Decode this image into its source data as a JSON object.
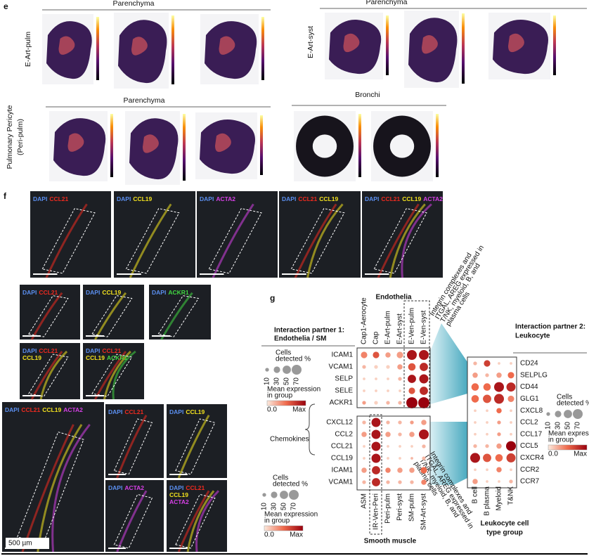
{
  "panel_labels": [
    "e",
    "f",
    "g"
  ],
  "e": {
    "groups": [
      {
        "header": "Parenchyma",
        "label": [
          "E-Art-pulm"
        ]
      },
      {
        "header": "Parenchyma",
        "label": [
          "E-Art-syst"
        ]
      },
      {
        "header": "Parenchyma",
        "label": [
          "Pulmonary Pericyte",
          "(Peri-pulm)"
        ]
      },
      {
        "header": "Bronchi",
        "label": []
      }
    ]
  },
  "f": {
    "images": [
      {
        "lines": [
          [
            {
              "text": "DAPI",
              "color": "#5b8ff0"
            },
            {
              "text": "CCL21",
              "color": "#ee2a1f"
            }
          ]
        ]
      },
      {
        "lines": [
          [
            {
              "text": "DAPI",
              "color": "#5b8ff0"
            },
            {
              "text": "CCL19",
              "color": "#f4e31e"
            }
          ]
        ]
      },
      {
        "lines": [
          [
            {
              "text": "DAPI",
              "color": "#5b8ff0"
            },
            {
              "text": "ACTA2",
              "color": "#d640e6"
            }
          ]
        ]
      },
      {
        "lines": [
          [
            {
              "text": "DAPI",
              "color": "#5b8ff0"
            },
            {
              "text": "CCL21",
              "color": "#ee2a1f"
            },
            {
              "text": "CCL19",
              "color": "#f4e31e"
            }
          ]
        ]
      },
      {
        "lines": [
          [
            {
              "text": "DAPI",
              "color": "#5b8ff0"
            },
            {
              "text": "CCL21",
              "color": "#ee2a1f"
            },
            {
              "text": "CCL19",
              "color": "#f4e31e"
            },
            {
              "text": "ACTA2",
              "color": "#d640e6"
            }
          ]
        ]
      },
      {
        "lines": [
          [
            {
              "text": "DAPI",
              "color": "#5b8ff0"
            },
            {
              "text": "CCL21",
              "color": "#ee2a1f"
            }
          ]
        ]
      },
      {
        "lines": [
          [
            {
              "text": "DAPI",
              "color": "#5b8ff0"
            },
            {
              "text": "CCL19",
              "color": "#f4e31e"
            }
          ]
        ]
      },
      {
        "lines": [
          [
            {
              "text": "DAPI",
              "color": "#5b8ff0"
            },
            {
              "text": "ACKR1",
              "color": "#42d642"
            }
          ]
        ]
      },
      {
        "lines": [
          [
            {
              "text": "DAPI",
              "color": "#5b8ff0"
            },
            {
              "text": "CCL21",
              "color": "#ee2a1f"
            }
          ],
          [
            {
              "text": "CCL19",
              "color": "#f4e31e"
            }
          ]
        ]
      },
      {
        "lines": [
          [
            {
              "text": "DAPI",
              "color": "#5b8ff0"
            },
            {
              "text": "CCL21",
              "color": "#ee2a1f"
            }
          ],
          [
            {
              "text": "CCL19",
              "color": "#f4e31e"
            },
            {
              "text": "ACKR1",
              "color": "#42d642"
            }
          ]
        ]
      },
      {
        "lines": [
          [
            {
              "text": "DAPI",
              "color": "#5b8ff0"
            },
            {
              "text": "CCL21",
              "color": "#ee2a1f"
            },
            {
              "text": "CCL19",
              "color": "#f4e31e"
            },
            {
              "text": "ACTA2",
              "color": "#d640e6"
            }
          ]
        ]
      },
      {
        "lines": [
          [
            {
              "text": "DAPI",
              "color": "#5b8ff0"
            },
            {
              "text": "CCL21",
              "color": "#ee2a1f"
            }
          ]
        ]
      },
      {
        "lines": [
          [
            {
              "text": "DAPI",
              "color": "#5b8ff0"
            },
            {
              "text": "CCL19",
              "color": "#f4e31e"
            }
          ]
        ]
      },
      {
        "lines": [
          [
            {
              "text": "DAPI",
              "color": "#5b8ff0"
            },
            {
              "text": "ACTA2",
              "color": "#d640e6"
            }
          ]
        ]
      },
      {
        "lines": [
          [
            {
              "text": "DAPI",
              "color": "#5b8ff0"
            },
            {
              "text": "CCL21",
              "color": "#ee2a1f"
            }
          ],
          [
            {
              "text": "CCL19",
              "color": "#f4e31e"
            }
          ],
          [
            {
              "text": "ACTA2",
              "color": "#d640e6"
            }
          ]
        ]
      }
    ],
    "scale_bar": "500 µm"
  },
  "g": {
    "top_title": "Endothelia",
    "bottom_title": "Smooth muscle",
    "partner1": [
      "Interaction partner 1:",
      "Endothelia / SM"
    ],
    "partner2": [
      "Interaction partner 2:",
      "Leukocyte"
    ],
    "chemokines": "Chemokines",
    "leuko_title": [
      "Leukocyte cell",
      "type group"
    ],
    "arrows": [
      [
        "Integrin complexes and",
        "ITGAL, AREG expressed in",
        "T/NK, myeloid, B, and",
        "plasma cells"
      ],
      [
        "Integrin complexes and",
        "ITGAL, AREG expressed in",
        "T/NK, myeloid, B, and",
        "plasma cells"
      ]
    ],
    "top": {
      "cols": [
        "Cap1-Aerocyte",
        "Cap",
        "E-Art-pulm",
        "E-Art-syst",
        "E-Ven-pulm",
        "E-Ven-syst"
      ],
      "rows": [
        "ICAM1",
        "VCAM1",
        "SELP",
        "SELE",
        "ACKR1"
      ],
      "size": [
        [
          30,
          30,
          20,
          30,
          70,
          70
        ],
        [
          10,
          10,
          10,
          20,
          40,
          50
        ],
        [
          5,
          5,
          5,
          10,
          50,
          60
        ],
        [
          5,
          5,
          5,
          5,
          30,
          50
        ],
        [
          10,
          10,
          10,
          10,
          90,
          90
        ]
      ],
      "expr": [
        [
          0.4,
          0.6,
          0.3,
          0.3,
          0.9,
          0.9
        ],
        [
          0.2,
          0.1,
          0.1,
          0.3,
          0.6,
          0.8
        ],
        [
          0.1,
          0.1,
          0.1,
          0.2,
          0.9,
          0.9
        ],
        [
          0.1,
          0.1,
          0.1,
          0.1,
          0.6,
          0.8
        ],
        [
          0.3,
          0.1,
          0.2,
          0.2,
          1,
          1
        ]
      ]
    },
    "bottom": {
      "cols": [
        "ASM",
        "IR-Ven-Peri",
        "Peri-pulm",
        "Peri-syst",
        "SM-pulm",
        "SM-Art-syst"
      ],
      "rows": [
        "CXCL12",
        "CCL2",
        "CCL21",
        "CCL19",
        "ICAM1",
        "VCAM1"
      ],
      "size": [
        [
          10,
          60,
          10,
          10,
          10,
          20
        ],
        [
          20,
          60,
          20,
          10,
          20,
          70
        ],
        [
          5,
          60,
          5,
          5,
          5,
          10
        ],
        [
          5,
          60,
          5,
          5,
          5,
          10
        ],
        [
          20,
          50,
          20,
          20,
          20,
          30
        ],
        [
          10,
          50,
          10,
          10,
          10,
          20
        ]
      ],
      "expr": [
        [
          0.2,
          0.9,
          0.2,
          0.2,
          0.3,
          0.3
        ],
        [
          0.3,
          0.9,
          0.3,
          0.2,
          0.3,
          0.9
        ],
        [
          0.1,
          0.9,
          0.1,
          0.1,
          0.1,
          0.2
        ],
        [
          0.1,
          0.9,
          0.1,
          0.1,
          0.2,
          0.2
        ],
        [
          0.3,
          0.8,
          0.4,
          0.3,
          0.3,
          0.5
        ],
        [
          0.2,
          0.8,
          0.2,
          0.2,
          0.2,
          0.4
        ]
      ]
    },
    "right": {
      "cols": [
        "B cell",
        "B plasma",
        "Myeloid",
        "T&NK"
      ],
      "rows": [
        "CD24",
        "SELPLG",
        "CD44",
        "GLG1",
        "CXCL8",
        "CCL2",
        "CCL17",
        "CCL5",
        "CXCR4",
        "CCR2",
        "CCR7"
      ],
      "size": [
        [
          10,
          30,
          5,
          5
        ],
        [
          20,
          10,
          20,
          30
        ],
        [
          40,
          40,
          70,
          60
        ],
        [
          40,
          50,
          70,
          30
        ],
        [
          5,
          5,
          20,
          5
        ],
        [
          5,
          5,
          10,
          5
        ],
        [
          5,
          5,
          10,
          5
        ],
        [
          10,
          10,
          20,
          70
        ],
        [
          70,
          50,
          40,
          60
        ],
        [
          5,
          5,
          20,
          5
        ],
        [
          20,
          5,
          5,
          10
        ]
      ],
      "expr": [
        [
          0.2,
          0.7,
          0.1,
          0.1
        ],
        [
          0.3,
          0.2,
          0.3,
          0.5
        ],
        [
          0.5,
          0.5,
          0.9,
          0.8
        ],
        [
          0.5,
          0.6,
          0.8,
          0.4
        ],
        [
          0.1,
          0.1,
          0.5,
          0.1
        ],
        [
          0.1,
          0.1,
          0.3,
          0.1
        ],
        [
          0.1,
          0.1,
          0.3,
          0.1
        ],
        [
          0.2,
          0.2,
          0.3,
          1
        ],
        [
          0.9,
          0.6,
          0.5,
          0.7
        ],
        [
          0.1,
          0.1,
          0.4,
          0.1
        ],
        [
          0.3,
          0.1,
          0.1,
          0.2
        ]
      ]
    },
    "legends": [
      {
        "title": [
          "Cells",
          "detected %"
        ],
        "size_ticks": [
          10,
          30,
          50,
          70
        ],
        "color_title": [
          "Mean expression",
          "in group"
        ],
        "color_min": "0.0",
        "color_max": "Max"
      },
      {
        "title": [
          "Cells",
          "detected %"
        ],
        "size_ticks": [
          10,
          30,
          50,
          70
        ],
        "color_title": [
          "Mean expression",
          "in group"
        ],
        "color_min": "0.0",
        "color_max": "Max"
      },
      {
        "title": [
          "Cells",
          "detected %"
        ],
        "size_ticks": [
          10,
          30,
          50,
          70
        ],
        "color_title": [
          "Mean expression",
          "in group"
        ],
        "color_min": "0.0",
        "color_max": "Max"
      }
    ]
  }
}
